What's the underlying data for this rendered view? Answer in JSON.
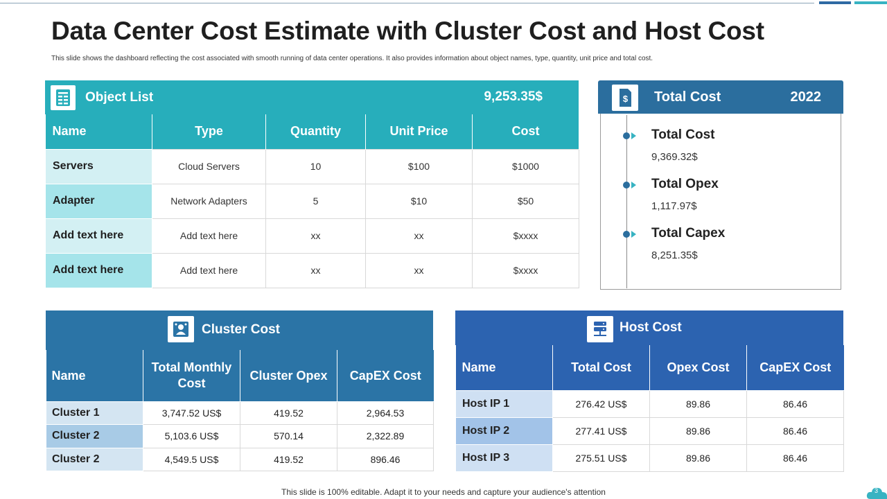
{
  "title": "Data Center Cost Estimate with Cluster Cost and Host Cost",
  "subtitle": "This slide shows the dashboard reflecting the cost associated with smooth running of data center operations. It also provides information about object names, type, quantity, unit price and total cost.",
  "object_list": {
    "title": "Object List",
    "total": "9,253.35$",
    "icon": "spreadsheet-icon",
    "headers": [
      "Name",
      "Type",
      "Quantity",
      "Unit Price",
      "Cost"
    ],
    "rows": [
      [
        "Servers",
        "Cloud Servers",
        "10",
        "$100",
        "$1000"
      ],
      [
        "Adapter",
        "Network Adapters",
        "5",
        "$10",
        "$50"
      ],
      [
        "Add text here",
        "Add text here",
        "xx",
        "xx",
        "$xxxx"
      ],
      [
        "Add text here",
        "Add text here",
        "xx",
        "xx",
        "$xxxx"
      ]
    ]
  },
  "total_cost": {
    "title": "Total Cost",
    "year": "2022",
    "icon": "dollar-document-icon",
    "items": [
      {
        "label": "Total Cost",
        "value": "9,369.32$"
      },
      {
        "label": "Total Opex",
        "value": "1,117.97$"
      },
      {
        "label": "Total Capex",
        "value": "8,251.35$"
      }
    ]
  },
  "cluster_cost": {
    "title": "Cluster Cost",
    "icon": "cluster-icon",
    "headers": [
      "Name",
      "Total Monthly Cost",
      "Cluster Opex",
      "CapEX Cost"
    ],
    "rows": [
      [
        "Cluster 1",
        "3,747.52 US$",
        "419.52",
        "2,964.53"
      ],
      [
        "Cluster 2",
        "5,103.6 US$",
        "570.14",
        "2,322.89"
      ],
      [
        "Cluster 2",
        "4,549.5 US$",
        "419.52",
        "896.46"
      ]
    ]
  },
  "host_cost": {
    "title": "Host Cost",
    "icon": "server-icon",
    "headers": [
      "Name",
      "Total Cost",
      "Opex Cost",
      "CapEX Cost"
    ],
    "rows": [
      [
        "Host IP 1",
        "276.42 US$",
        "89.86",
        "86.46"
      ],
      [
        "Host IP 2",
        "277.41 US$",
        "89.86",
        "86.46"
      ],
      [
        "Host IP 3",
        "275.51 US$",
        "89.86",
        "86.46"
      ]
    ]
  },
  "footer": "This slide is 100% editable. Adapt it to your needs and capture your audience's attention",
  "page_number": "3",
  "colors": {
    "teal": "#27aebb",
    "blue": "#2b74a6",
    "host_blue": "#2c63b0",
    "total_header": "#2b6e9e"
  }
}
